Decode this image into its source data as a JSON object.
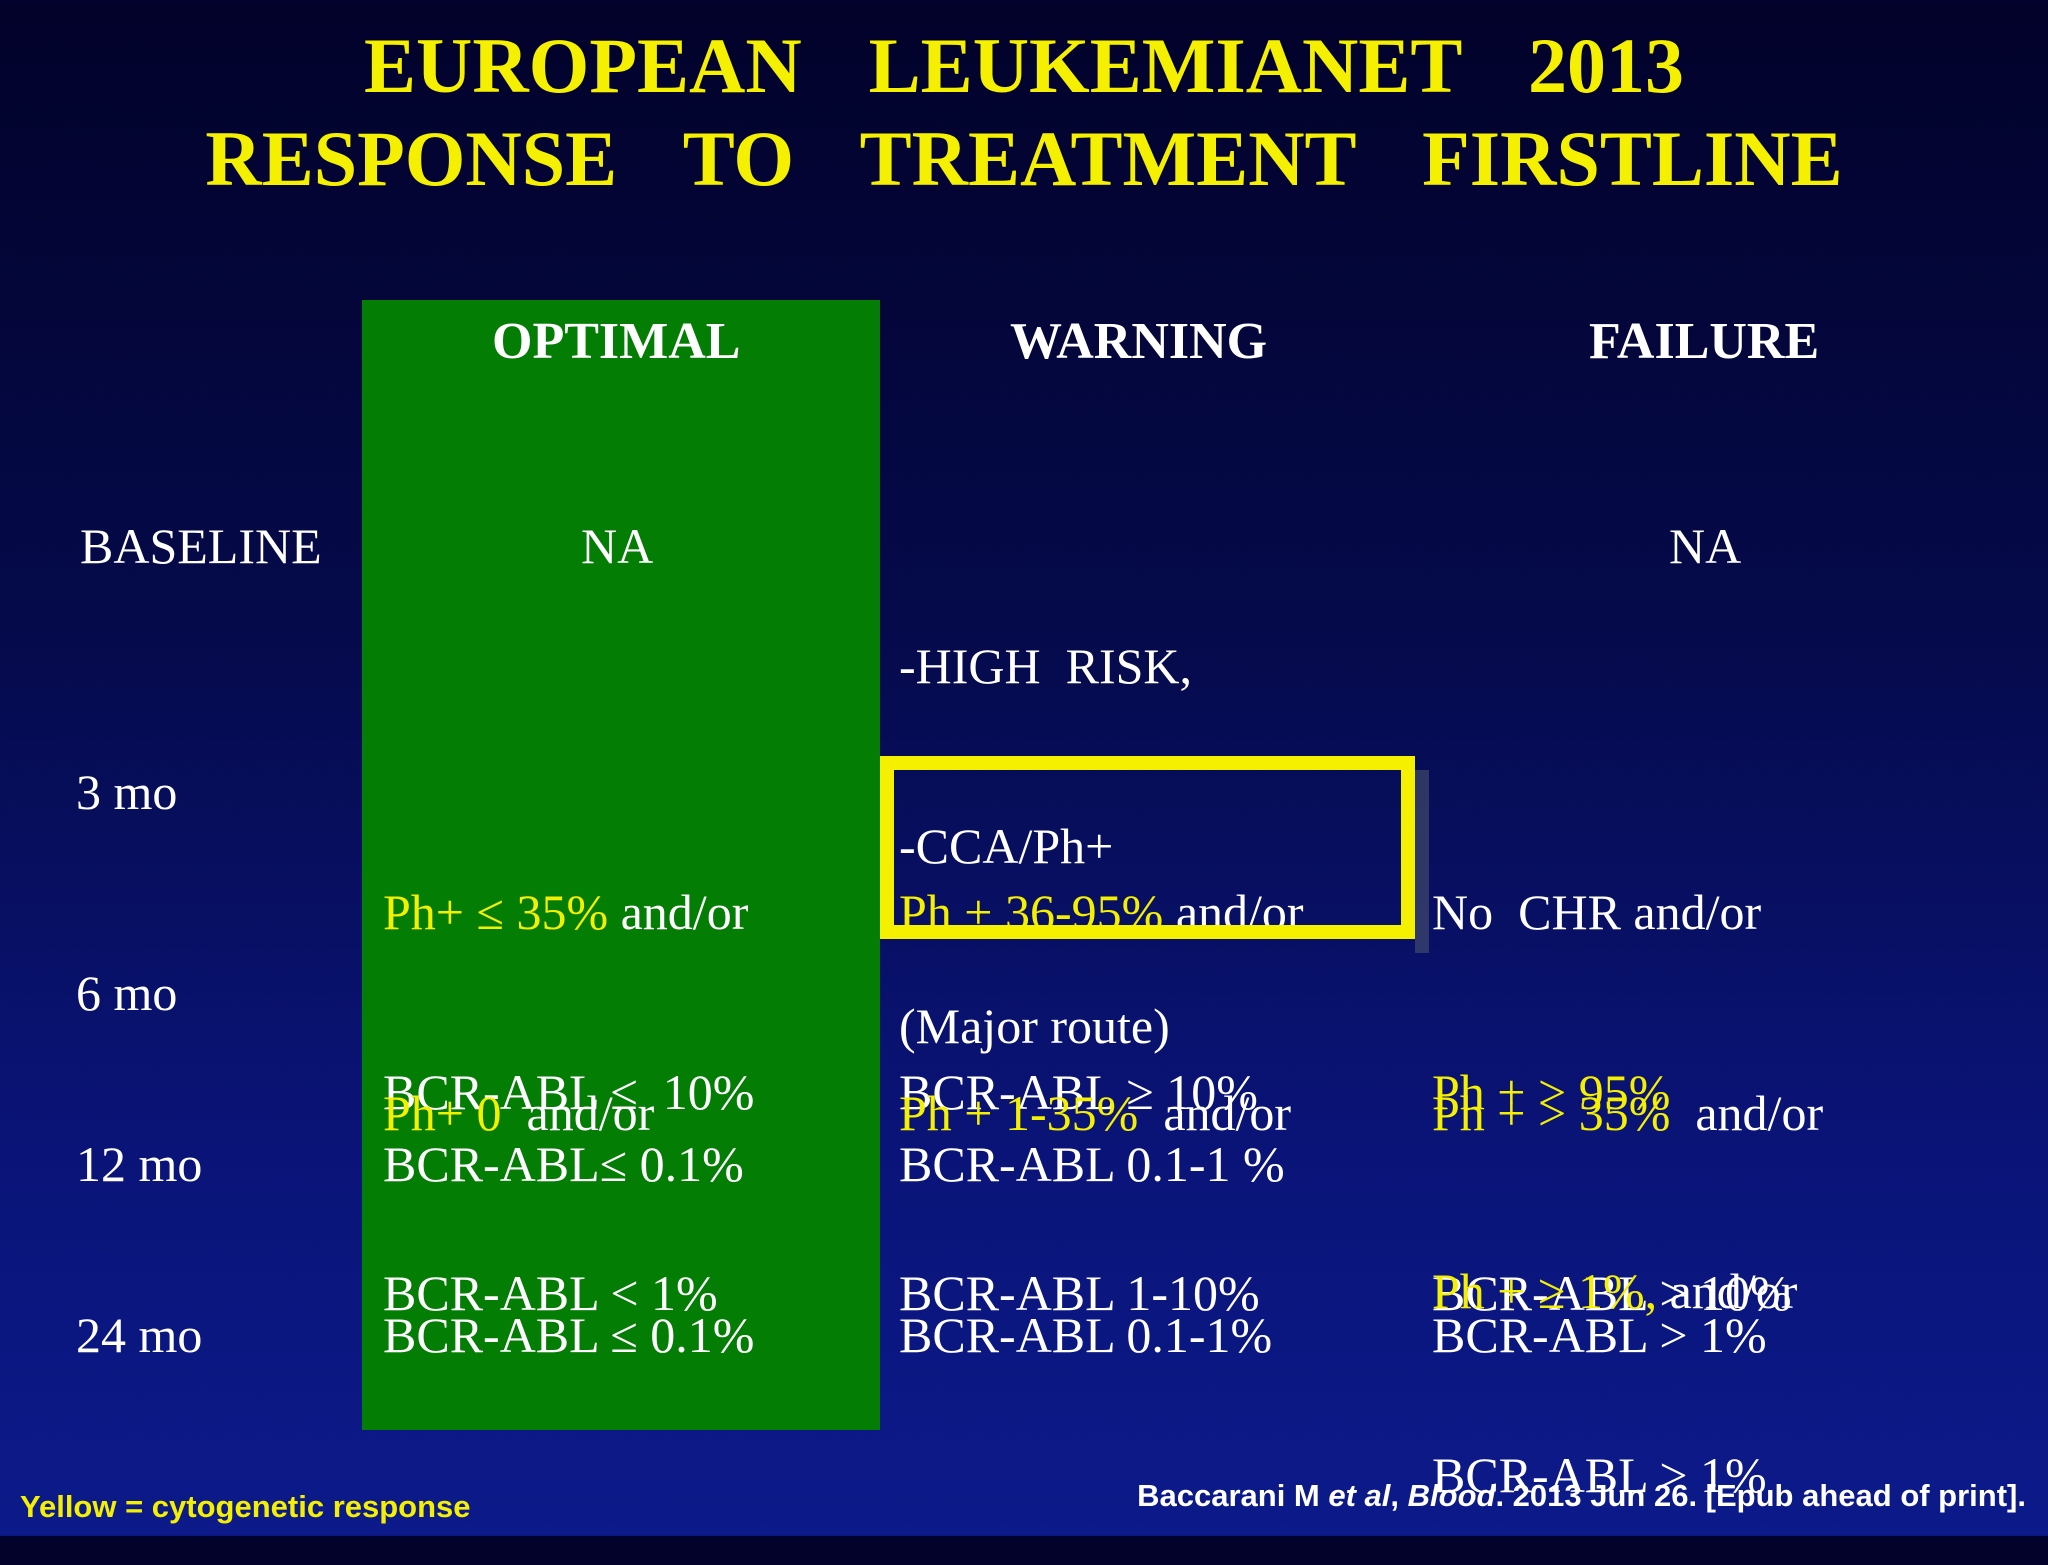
{
  "title": {
    "line1": "EUROPEAN  LEUKEMIANET  2013",
    "line2": "RESPONSE  TO  TREATMENT  FIRSTLINE"
  },
  "columns": {
    "optimal": "OPTIMAL",
    "warning": "WARNING",
    "failure": "FAILURE"
  },
  "rows": {
    "baseline": {
      "label": "BASELINE",
      "optimal": "NA",
      "warning_1": "-HIGH  RISK,",
      "warning_2": "-CCA/Ph+",
      "warning_3": "(Major route)",
      "failure": "NA"
    },
    "m3": {
      "label": "3 mo",
      "optimal_1y": "Ph+ ≤ 35%",
      "optimal_1w": " and/or",
      "optimal_2": "BCR-ABL ≤  10%",
      "warning_1y": "Ph + 36-95%",
      "warning_1w": " and/or",
      "warning_2": "BCR-ABL ≥ 10%",
      "failure_1": "No  CHR and/or",
      "failure_2y": "Ph + > 95%"
    },
    "m6": {
      "label": "6 mo",
      "optimal_1y": "Ph+ 0",
      "optimal_1w": "  and/or",
      "optimal_2": "BCR-ABL < 1%",
      "warning_1y": "Ph + 1-35%",
      "warning_1w": "  and/or",
      "warning_2": "BCR-ABL 1-10%",
      "failure_1y": "Ph + > 35%",
      "failure_1w": "  and/or",
      "failure_2": "BCR-ABL > 10%"
    },
    "m12": {
      "label": "12 mo",
      "optimal": "BCR-ABL≤ 0.1%",
      "warning": "BCR-ABL 0.1-1 %",
      "failure_1y": "Ph + ≥ 1%,",
      "failure_1w": " and/or",
      "failure_2": "BCR-ABL > 1%"
    },
    "m24": {
      "label": "24 mo",
      "optimal": "BCR-ABL ≤ 0.1%",
      "warning": "BCR-ABL 0.1-1%",
      "failure": "BCR-ABL > 1%"
    }
  },
  "footnote": {
    "legend": "Yellow = cytogenetic response",
    "cite_a": "Baccarani M ",
    "cite_b": "et al",
    "cite_c": ", ",
    "cite_d": "Blood",
    "cite_e": ". 2013 Jun 26. [Epub ahead of print]."
  },
  "colors": {
    "highlight": "#f4f000",
    "optimal_column": "#047d04",
    "background": "#050a4a"
  }
}
